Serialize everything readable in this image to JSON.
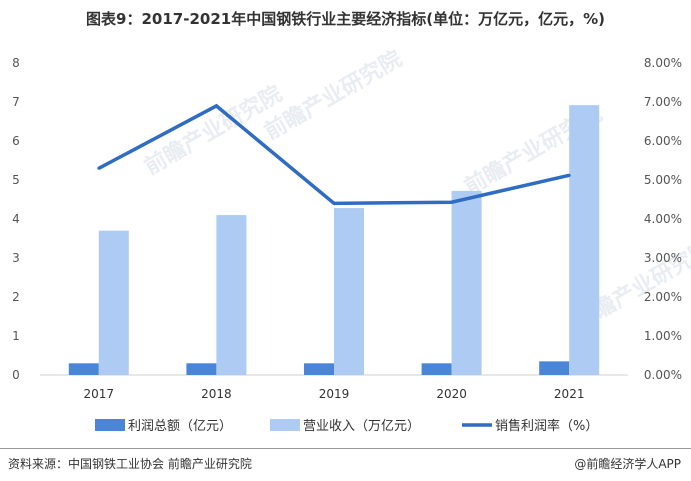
{
  "header": {
    "title": "图表9：2017-2021年中国钢铁行业主要经济指标(单位：万亿元，亿元，%)"
  },
  "chart_data": {
    "type": "bar",
    "categories": [
      "2017",
      "2018",
      "2019",
      "2020",
      "2021"
    ],
    "series": [
      {
        "name": "利润总额（亿元）",
        "kind": "bar",
        "axis": "left",
        "color": "#4a86d8",
        "values": [
          0.3,
          0.3,
          0.3,
          0.3,
          0.35
        ]
      },
      {
        "name": "营业收入（万亿元）",
        "kind": "bar",
        "axis": "left",
        "color": "#aecbf3",
        "values": [
          3.7,
          4.1,
          4.28,
          4.72,
          6.92
        ]
      },
      {
        "name": "销售利润率（%）",
        "kind": "line",
        "axis": "right",
        "color": "#2f6cc4",
        "values": [
          5.3,
          6.9,
          4.4,
          4.43,
          5.12
        ]
      }
    ],
    "left_axis": {
      "min": 0,
      "max": 8,
      "step": 1,
      "ticks": [
        "0",
        "1",
        "2",
        "3",
        "4",
        "5",
        "6",
        "7",
        "8"
      ]
    },
    "right_axis": {
      "min": 0,
      "max": 8,
      "step": 1,
      "ticks": [
        "0.00%",
        "1.00%",
        "2.00%",
        "3.00%",
        "4.00%",
        "5.00%",
        "6.00%",
        "7.00%",
        "8.00%"
      ]
    },
    "xlabel": "",
    "ylabel": "",
    "grid": false,
    "legend_position": "bottom"
  },
  "footer": {
    "source": "资料来源：中国钢铁工业协会 前瞻产业研究院",
    "publisher": "@前瞻经济学人APP"
  },
  "watermark": {
    "text": "前瞻产业研究院"
  }
}
